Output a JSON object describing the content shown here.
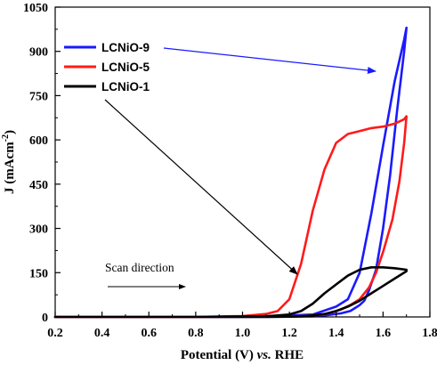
{
  "chart_data": {
    "type": "line",
    "title": "",
    "xlabel": "Potential (V) vs. RHE",
    "xlabel_parts": [
      "Potential (V) ",
      "vs.",
      " RHE"
    ],
    "ylabel": "J (mAcm-2)",
    "ylabel_parts": [
      "J (mAcm",
      "-2",
      ")"
    ],
    "xlim": [
      0.2,
      1.8
    ],
    "ylim": [
      0,
      1050
    ],
    "xticks": [
      0.2,
      0.4,
      0.6,
      0.8,
      1.0,
      1.2,
      1.4,
      1.6,
      1.8
    ],
    "xtick_labels": [
      "0.2",
      "0.4",
      "0.6",
      "0.8",
      "1.0",
      "1.2",
      "1.4",
      "1.6",
      "1.8"
    ],
    "yticks": [
      0,
      150,
      300,
      450,
      600,
      750,
      900,
      1050
    ],
    "ytick_labels": [
      "0",
      "150",
      "300",
      "450",
      "600",
      "750",
      "900",
      "1050"
    ],
    "grid": false,
    "legend_position": "top-left",
    "series": [
      {
        "name": "LCNiO-9",
        "color": "#1a1aff",
        "x": [
          0.2,
          0.8,
          1.1,
          1.3,
          1.4,
          1.45,
          1.5,
          1.55,
          1.6,
          1.65,
          1.69,
          1.7,
          1.69,
          1.66,
          1.63,
          1.6,
          1.57,
          1.54,
          1.52,
          1.5,
          1.48,
          1.46,
          1.42,
          1.35,
          1.3,
          1.2,
          1.0,
          0.8,
          0.2
        ],
        "y": [
          0,
          0,
          2,
          8,
          35,
          60,
          150,
          350,
          580,
          800,
          940,
          980,
          900,
          700,
          480,
          300,
          160,
          90,
          55,
          40,
          30,
          20,
          12,
          5,
          2,
          1,
          0,
          0,
          0
        ]
      },
      {
        "name": "LCNiO-5",
        "color": "#ff1a1a",
        "x": [
          0.2,
          0.8,
          1.0,
          1.1,
          1.15,
          1.2,
          1.25,
          1.3,
          1.35,
          1.4,
          1.45,
          1.5,
          1.55,
          1.6,
          1.65,
          1.69,
          1.7,
          1.69,
          1.67,
          1.64,
          1.6,
          1.57,
          1.54,
          1.5,
          1.46,
          1.42,
          1.38,
          1.34,
          1.3,
          1.25,
          1.2,
          1.1,
          0.8,
          0.2
        ],
        "y": [
          0,
          0,
          3,
          10,
          20,
          60,
          180,
          360,
          500,
          590,
          620,
          630,
          640,
          645,
          655,
          670,
          680,
          590,
          460,
          330,
          220,
          150,
          100,
          60,
          40,
          25,
          15,
          8,
          5,
          3,
          2,
          1,
          0,
          0
        ]
      },
      {
        "name": "LCNiO-1",
        "color": "#000000",
        "x": [
          0.2,
          0.8,
          1.1,
          1.2,
          1.25,
          1.3,
          1.35,
          1.4,
          1.45,
          1.5,
          1.55,
          1.6,
          1.65,
          1.7,
          1.7,
          1.65,
          1.6,
          1.55,
          1.5,
          1.45,
          1.4,
          1.35,
          1.3,
          1.25,
          1.2,
          1.1,
          0.8,
          0.2
        ],
        "y": [
          0,
          0,
          2,
          8,
          20,
          45,
          80,
          110,
          140,
          160,
          168,
          168,
          165,
          160,
          155,
          130,
          105,
          80,
          55,
          35,
          20,
          10,
          5,
          2,
          1,
          0,
          0,
          0
        ]
      }
    ],
    "annotations": [
      {
        "text": "Scan direction"
      }
    ]
  }
}
